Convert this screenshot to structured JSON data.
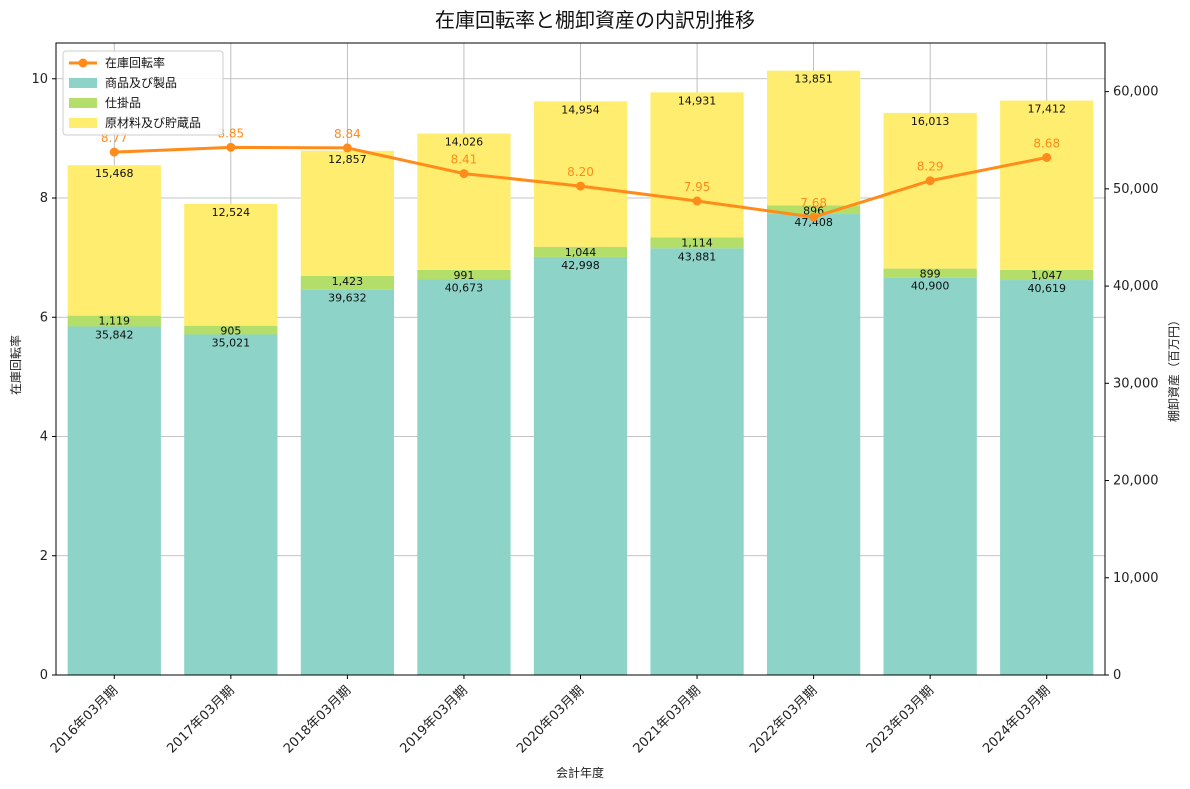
{
  "chart_data": {
    "type": "bar",
    "title": "在庫回転率と棚卸資産の内訳別推移",
    "xlabel": "会計年度",
    "ylabel_left": "在庫回転率",
    "ylabel_right": "棚卸資産（百万円）",
    "categories": [
      "2016年03月期",
      "2017年03月期",
      "2018年03月期",
      "2019年03月期",
      "2020年03月期",
      "2021年03月期",
      "2022年03月期",
      "2023年03月期",
      "2024年03月期"
    ],
    "series": [
      {
        "name": "商品及び製品",
        "type": "stacked-bar",
        "axis": "right",
        "color": "#8dd3c7",
        "values": [
          35842,
          35021,
          39632,
          40673,
          42998,
          43881,
          47408,
          40900,
          40619
        ]
      },
      {
        "name": "仕掛品",
        "type": "stacked-bar",
        "axis": "right",
        "color": "#b3de69",
        "values": [
          1119,
          905,
          1423,
          991,
          1044,
          1114,
          896,
          899,
          1047
        ]
      },
      {
        "name": "原材料及び貯蔵品",
        "type": "stacked-bar",
        "axis": "right",
        "color": "#ffed6f",
        "values": [
          15468,
          12524,
          12857,
          14026,
          14954,
          14931,
          13851,
          16013,
          17412
        ]
      },
      {
        "name": "在庫回転率",
        "type": "line",
        "axis": "left",
        "color": "#ff8c1a",
        "values": [
          8.77,
          8.85,
          8.84,
          8.41,
          8.2,
          7.95,
          7.68,
          8.29,
          8.68
        ]
      }
    ],
    "ylim_left": [
      0,
      10.6
    ],
    "ylim_right": [
      0,
      65000
    ],
    "yticks_left": [
      0,
      2,
      4,
      6,
      8,
      10
    ],
    "yticks_right": [
      0,
      10000,
      20000,
      30000,
      40000,
      50000,
      60000
    ],
    "ytick_labels_right": [
      "0",
      "10,000",
      "20,000",
      "30,000",
      "40,000",
      "50,000",
      "60,000"
    ],
    "grid": true,
    "legend_position": "top-left"
  }
}
